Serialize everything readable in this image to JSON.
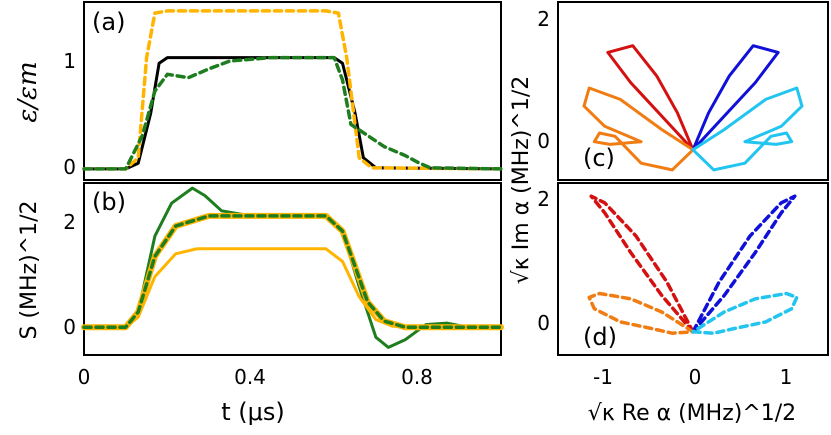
{
  "panels": {
    "a": "(a)",
    "b": "(b)",
    "c": "(c)",
    "d": "(d)"
  },
  "axes": {
    "left_x_label": "t (μs)",
    "left_x_ticks": [
      "0",
      "0.4",
      "0.8"
    ],
    "a_y_label": "ε/εm",
    "a_y_ticks": [
      "0",
      "1"
    ],
    "b_y_label": "S (MHz)^1/2",
    "b_y_ticks": [
      "0",
      "2"
    ],
    "right_y_label": "√κ Im α (MHz)^1/2",
    "right_y_ticks_top": [
      "0",
      "2"
    ],
    "right_y_ticks_bottom": [
      "0",
      "2"
    ],
    "right_x_label": "√κ Re α (MHz)^1/2",
    "right_x_ticks": [
      "-1",
      "0",
      "1"
    ]
  },
  "colors": {
    "black": "#000000",
    "yellow": "#FFB400",
    "green": "#1E7D1E",
    "red": "#D41111",
    "blue": "#1010D8",
    "orange": "#F07C12",
    "cyan": "#22C4F0"
  },
  "chart_data": [
    {
      "type": "line",
      "panel": "a",
      "xlim": [
        0,
        1.0
      ],
      "ylim": [
        -0.1,
        1.5
      ],
      "series": [
        {
          "color": "black",
          "style": "solid",
          "points": [
            [
              0,
              0
            ],
            [
              0.1,
              0
            ],
            [
              0.13,
              0.05
            ],
            [
              0.16,
              0.5
            ],
            [
              0.18,
              0.95
            ],
            [
              0.2,
              1.0
            ],
            [
              0.4,
              1.0
            ],
            [
              0.6,
              1.0
            ],
            [
              0.62,
              0.95
            ],
            [
              0.65,
              0.5
            ],
            [
              0.67,
              0.1
            ],
            [
              0.7,
              0.01
            ],
            [
              1.0,
              0
            ]
          ]
        },
        {
          "color": "yellow",
          "style": "dashed",
          "points": [
            [
              0,
              0
            ],
            [
              0.1,
              0
            ],
            [
              0.13,
              0.1
            ],
            [
              0.15,
              1.0
            ],
            [
              0.17,
              1.4
            ],
            [
              0.2,
              1.42
            ],
            [
              0.58,
              1.42
            ],
            [
              0.61,
              1.4
            ],
            [
              0.63,
              1.0
            ],
            [
              0.66,
              0.1
            ],
            [
              0.69,
              0.01
            ],
            [
              1.0,
              0
            ]
          ]
        },
        {
          "color": "green",
          "style": "dashed",
          "points": [
            [
              0,
              0
            ],
            [
              0.1,
              0
            ],
            [
              0.14,
              0.3
            ],
            [
              0.17,
              0.7
            ],
            [
              0.2,
              0.85
            ],
            [
              0.25,
              0.82
            ],
            [
              0.3,
              0.9
            ],
            [
              0.35,
              0.97
            ],
            [
              0.45,
              1.0
            ],
            [
              0.6,
              1.0
            ],
            [
              0.62,
              0.8
            ],
            [
              0.64,
              0.4
            ],
            [
              0.68,
              0.3
            ],
            [
              0.72,
              0.2
            ],
            [
              0.77,
              0.12
            ],
            [
              0.8,
              0.06
            ],
            [
              0.83,
              0.01
            ],
            [
              1.0,
              0
            ]
          ]
        }
      ]
    },
    {
      "type": "line",
      "panel": "b",
      "xlim": [
        0,
        1.0
      ],
      "ylim": [
        -0.55,
        2.85
      ],
      "series": [
        {
          "color": "green",
          "style": "solid",
          "points": [
            [
              0,
              0
            ],
            [
              0.1,
              0
            ],
            [
              0.13,
              0.3
            ],
            [
              0.17,
              1.8
            ],
            [
              0.21,
              2.45
            ],
            [
              0.26,
              2.75
            ],
            [
              0.29,
              2.6
            ],
            [
              0.33,
              2.3
            ],
            [
              0.4,
              2.2
            ],
            [
              0.5,
              2.2
            ],
            [
              0.58,
              2.2
            ],
            [
              0.62,
              1.9
            ],
            [
              0.66,
              0.8
            ],
            [
              0.7,
              -0.2
            ],
            [
              0.73,
              -0.4
            ],
            [
              0.77,
              -0.25
            ],
            [
              0.82,
              0.05
            ],
            [
              0.87,
              0.08
            ],
            [
              0.92,
              0.0
            ],
            [
              1.0,
              0
            ]
          ]
        },
        {
          "color": "yellow",
          "style": "solid",
          "points": [
            [
              0,
              0
            ],
            [
              0.1,
              0
            ],
            [
              0.13,
              0.2
            ],
            [
              0.17,
              1.0
            ],
            [
              0.22,
              1.45
            ],
            [
              0.27,
              1.55
            ],
            [
              0.58,
              1.55
            ],
            [
              0.62,
              1.3
            ],
            [
              0.66,
              0.6
            ],
            [
              0.7,
              0.15
            ],
            [
              0.74,
              0.02
            ],
            [
              1.0,
              0
            ]
          ]
        },
        {
          "color": "yellow",
          "style": "solid-thick",
          "points": [
            [
              0,
              0
            ],
            [
              0.1,
              0
            ],
            [
              0.13,
              0.3
            ],
            [
              0.17,
              1.4
            ],
            [
              0.22,
              2.0
            ],
            [
              0.3,
              2.2
            ],
            [
              0.4,
              2.2
            ],
            [
              0.58,
              2.2
            ],
            [
              0.62,
              1.9
            ],
            [
              0.65,
              1.2
            ],
            [
              0.68,
              0.5
            ],
            [
              0.72,
              0.12
            ],
            [
              0.77,
              0.0
            ],
            [
              1.0,
              0
            ]
          ]
        },
        {
          "color": "green",
          "style": "dashed",
          "points": [
            [
              0,
              0
            ],
            [
              0.1,
              0
            ],
            [
              0.13,
              0.3
            ],
            [
              0.17,
              1.4
            ],
            [
              0.22,
              2.0
            ],
            [
              0.3,
              2.2
            ],
            [
              0.4,
              2.2
            ],
            [
              0.58,
              2.2
            ],
            [
              0.62,
              1.9
            ],
            [
              0.65,
              1.2
            ],
            [
              0.68,
              0.5
            ],
            [
              0.72,
              0.12
            ],
            [
              0.77,
              0.0
            ],
            [
              1.0,
              0
            ]
          ]
        }
      ]
    },
    {
      "type": "line",
      "panel": "c",
      "xlim": [
        -1.3,
        1.3
      ],
      "ylim": [
        -0.45,
        2.2
      ],
      "series": [
        {
          "color": "red",
          "style": "solid",
          "points": [
            [
              0,
              0
            ],
            [
              -0.6,
              1.0
            ],
            [
              -0.82,
              1.45
            ],
            [
              -0.58,
              1.55
            ],
            [
              -0.35,
              1.1
            ],
            [
              -0.15,
              0.55
            ],
            [
              0,
              0
            ]
          ]
        },
        {
          "color": "blue",
          "style": "solid",
          "points": [
            [
              0,
              0
            ],
            [
              0.15,
              0.55
            ],
            [
              0.35,
              1.1
            ],
            [
              0.58,
              1.55
            ],
            [
              0.82,
              1.45
            ],
            [
              0.6,
              1.0
            ],
            [
              0,
              0
            ]
          ]
        },
        {
          "color": "orange",
          "style": "solid",
          "points": [
            [
              0,
              0
            ],
            [
              -0.3,
              0.3
            ],
            [
              -0.7,
              0.75
            ],
            [
              -1.0,
              0.92
            ],
            [
              -1.05,
              0.65
            ],
            [
              -0.85,
              0.35
            ],
            [
              -0.5,
              0.12
            ],
            [
              -0.8,
              0.08
            ],
            [
              -0.95,
              0.12
            ],
            [
              -0.9,
              0.25
            ],
            [
              -0.75,
              0.2
            ],
            [
              -0.5,
              -0.2
            ],
            [
              -0.2,
              -0.3
            ],
            [
              0,
              0
            ]
          ]
        },
        {
          "color": "cyan",
          "style": "solid",
          "points": [
            [
              0,
              0
            ],
            [
              0.3,
              0.3
            ],
            [
              0.7,
              0.75
            ],
            [
              1.0,
              0.92
            ],
            [
              1.05,
              0.65
            ],
            [
              0.85,
              0.35
            ],
            [
              0.5,
              0.12
            ],
            [
              0.8,
              0.08
            ],
            [
              0.95,
              0.12
            ],
            [
              0.9,
              0.25
            ],
            [
              0.75,
              0.2
            ],
            [
              0.5,
              -0.2
            ],
            [
              0.2,
              -0.3
            ],
            [
              0,
              0
            ]
          ]
        }
      ]
    },
    {
      "type": "line",
      "panel": "d",
      "xlim": [
        -1.3,
        1.3
      ],
      "ylim": [
        -0.35,
        2.25
      ],
      "series": [
        {
          "color": "red",
          "style": "dashed",
          "points": [
            [
              0,
              0
            ],
            [
              -0.3,
              0.55
            ],
            [
              -0.6,
              1.2
            ],
            [
              -0.85,
              1.8
            ],
            [
              -0.98,
              2.05
            ],
            [
              -0.85,
              1.95
            ],
            [
              -0.55,
              1.45
            ],
            [
              -0.25,
              0.75
            ],
            [
              0,
              0
            ]
          ]
        },
        {
          "color": "blue",
          "style": "dashed",
          "points": [
            [
              0,
              0
            ],
            [
              0.25,
              0.75
            ],
            [
              0.55,
              1.45
            ],
            [
              0.85,
              1.95
            ],
            [
              0.98,
              2.05
            ],
            [
              0.85,
              1.8
            ],
            [
              0.6,
              1.2
            ],
            [
              0.3,
              0.55
            ],
            [
              0,
              0
            ]
          ]
        },
        {
          "color": "orange",
          "style": "dashed",
          "points": [
            [
              0,
              0
            ],
            [
              -0.3,
              0.3
            ],
            [
              -0.6,
              0.5
            ],
            [
              -0.9,
              0.58
            ],
            [
              -1.0,
              0.52
            ],
            [
              -0.95,
              0.35
            ],
            [
              -0.7,
              0.15
            ],
            [
              -0.4,
              0.05
            ],
            [
              -0.2,
              -0.02
            ],
            [
              0,
              0
            ]
          ]
        },
        {
          "color": "cyan",
          "style": "dashed",
          "points": [
            [
              0,
              0
            ],
            [
              0.2,
              -0.02
            ],
            [
              0.4,
              0.05
            ],
            [
              0.7,
              0.15
            ],
            [
              0.95,
              0.35
            ],
            [
              1.0,
              0.52
            ],
            [
              0.9,
              0.58
            ],
            [
              0.6,
              0.5
            ],
            [
              0.3,
              0.3
            ],
            [
              0,
              0
            ]
          ]
        }
      ]
    }
  ]
}
